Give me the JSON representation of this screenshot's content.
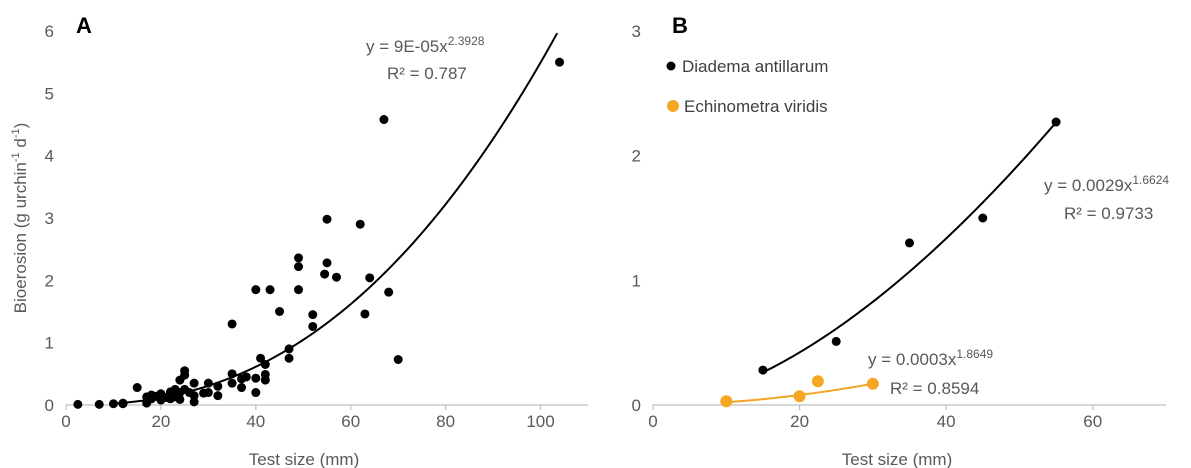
{
  "chart_data": [
    {
      "type": "scatter",
      "panel_label": "A",
      "title": "",
      "xlabel": "Test size (mm)",
      "ylabel": "Bioerosion (g urchin",
      "ylabel_sup1": "-1",
      "ylabel_mid": " d",
      "ylabel_sup2": "-1",
      "ylabel_end": ")",
      "xlim": [
        0,
        110
      ],
      "ylim": [
        0,
        6
      ],
      "xticks": [
        0,
        20,
        40,
        60,
        80,
        100
      ],
      "yticks": [
        0,
        1,
        2,
        3,
        4,
        5,
        6
      ],
      "grid": false,
      "series": [
        {
          "color": "#000000",
          "points": [
            [
              2.5,
              0.01
            ],
            [
              7,
              0.01
            ],
            [
              10,
              0.02
            ],
            [
              12,
              0.02
            ],
            [
              12,
              0.03
            ],
            [
              15,
              0.28
            ],
            [
              17,
              0.13
            ],
            [
              17,
              0.03
            ],
            [
              18,
              0.1
            ],
            [
              18,
              0.16
            ],
            [
              19,
              0.14
            ],
            [
              20,
              0.08
            ],
            [
              20,
              0.18
            ],
            [
              21,
              0.12
            ],
            [
              22,
              0.1
            ],
            [
              22,
              0.15
            ],
            [
              22,
              0.21
            ],
            [
              23,
              0.13
            ],
            [
              23,
              0.25
            ],
            [
              24,
              0.4
            ],
            [
              24,
              0.09
            ],
            [
              24,
              0.2
            ],
            [
              25,
              0.55
            ],
            [
              25,
              0.48
            ],
            [
              25,
              0.25
            ],
            [
              26,
              0.2
            ],
            [
              27,
              0.35
            ],
            [
              27,
              0.05
            ],
            [
              27,
              0.15
            ],
            [
              29,
              0.19
            ],
            [
              30,
              0.35
            ],
            [
              30,
              0.2
            ],
            [
              32,
              0.3
            ],
            [
              32,
              0.15
            ],
            [
              35,
              0.5
            ],
            [
              35,
              0.35
            ],
            [
              35,
              1.3
            ],
            [
              37,
              0.42
            ],
            [
              37,
              0.28
            ],
            [
              38,
              0.45
            ],
            [
              40,
              0.43
            ],
            [
              40,
              0.2
            ],
            [
              40,
              1.85
            ],
            [
              41,
              0.75
            ],
            [
              42,
              0.65
            ],
            [
              42,
              0.49
            ],
            [
              42,
              0.4
            ],
            [
              43,
              1.85
            ],
            [
              45,
              1.5
            ],
            [
              47,
              0.9
            ],
            [
              47,
              0.75
            ],
            [
              49,
              2.36
            ],
            [
              49,
              2.22
            ],
            [
              49,
              1.85
            ],
            [
              52,
              1.45
            ],
            [
              52,
              1.26
            ],
            [
              54.5,
              2.1
            ],
            [
              55,
              2.28
            ],
            [
              55,
              2.98
            ],
            [
              57,
              2.05
            ],
            [
              62,
              2.9
            ],
            [
              63,
              1.46
            ],
            [
              64,
              2.04
            ],
            [
              67,
              4.58
            ],
            [
              68,
              1.81
            ],
            [
              70,
              0.73
            ],
            [
              104,
              5.5
            ]
          ],
          "fit": {
            "model": "power",
            "a": 9e-05,
            "b": 2.3928,
            "x_range": [
              10,
              103.5
            ],
            "color": "#000000"
          }
        }
      ],
      "equation": {
        "text": "y = 9E-05x",
        "exponent": "2.3928",
        "r2": "R² = 0.787"
      }
    },
    {
      "type": "scatter",
      "panel_label": "B",
      "title": "",
      "xlabel": "Test size (mm)",
      "xlim": [
        0,
        70
      ],
      "ylim": [
        0,
        3
      ],
      "xticks": [
        0,
        20,
        40,
        60
      ],
      "yticks": [
        0,
        1,
        2,
        3
      ],
      "grid": false,
      "legend_position": "top-left",
      "series": [
        {
          "name": "Diadema antillarum",
          "color": "#000000",
          "points": [
            [
              15,
              0.28
            ],
            [
              25,
              0.51
            ],
            [
              35,
              1.3
            ],
            [
              45,
              1.5
            ],
            [
              55,
              2.27
            ]
          ],
          "fit": {
            "model": "power",
            "a": 0.0029,
            "b": 1.6624,
            "x_range": [
              15,
              55
            ],
            "color": "#000000"
          },
          "equation": {
            "text": "y = 0.0029x",
            "exponent": "1.6624",
            "r2": "R² = 0.9733"
          }
        },
        {
          "name": "Echinometra viridis",
          "color": "#F5A623",
          "points": [
            [
              10,
              0.03
            ],
            [
              20,
              0.07
            ],
            [
              22.5,
              0.19
            ],
            [
              30,
              0.17
            ]
          ],
          "fit": {
            "model": "power",
            "a": 0.0003,
            "b": 1.8649,
            "x_range": [
              10,
              30
            ],
            "color": "#F5A623"
          },
          "equation": {
            "text": "y = 0.0003x",
            "exponent": "1.8649",
            "r2": "R² = 0.8594"
          }
        }
      ]
    }
  ]
}
